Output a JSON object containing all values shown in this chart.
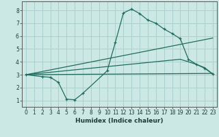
{
  "bg_color": "#cce8e4",
  "grid_color": "#aacfcc",
  "line_color": "#1e6b5e",
  "line1_x": [
    0,
    2,
    3,
    4,
    5,
    6,
    7,
    10,
    11,
    12,
    13,
    14,
    15,
    16,
    17,
    18,
    19,
    20,
    21,
    22,
    23
  ],
  "line1_y": [
    3.0,
    2.85,
    2.8,
    2.4,
    1.1,
    1.05,
    1.55,
    3.3,
    5.5,
    7.8,
    8.1,
    7.75,
    7.25,
    7.0,
    6.55,
    6.2,
    5.8,
    4.2,
    3.8,
    3.5,
    3.05
  ],
  "line2_x": [
    0,
    19,
    21,
    22,
    23
  ],
  "line2_y": [
    3.0,
    4.2,
    3.8,
    3.55,
    3.05
  ],
  "line3_x": [
    0,
    23
  ],
  "line3_y": [
    3.0,
    5.85
  ],
  "line4_x": [
    0,
    23
  ],
  "line4_y": [
    3.0,
    3.1
  ],
  "xlabel": "Humidex (Indice chaleur)",
  "xlim": [
    -0.5,
    23.5
  ],
  "ylim": [
    0.5,
    8.7
  ],
  "yticks": [
    1,
    2,
    3,
    4,
    5,
    6,
    7,
    8
  ],
  "xticks": [
    0,
    1,
    2,
    3,
    4,
    5,
    6,
    7,
    8,
    9,
    10,
    11,
    12,
    13,
    14,
    15,
    16,
    17,
    18,
    19,
    20,
    21,
    22,
    23
  ],
  "xlabel_fontsize": 6.5,
  "tick_fontsize": 5.5
}
